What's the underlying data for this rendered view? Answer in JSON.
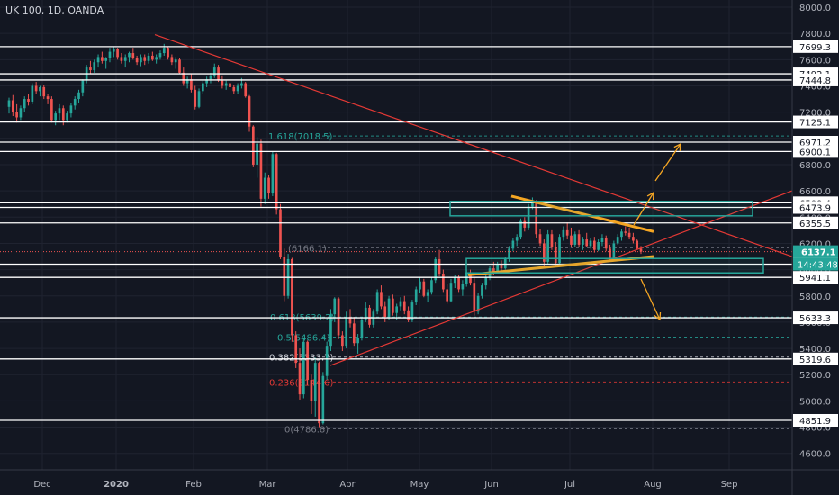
{
  "header": {
    "title": "UK 100, 1D, OANDA"
  },
  "colors": {
    "background": "#131722",
    "up": "#26a69a",
    "down": "#ef5350",
    "axis_text": "#b2b5be",
    "level_line": "#ffffff",
    "trendline": "#e53935",
    "channel": "#f5a623",
    "fib_teal": "#26a69a",
    "fib_red": "#e53935"
  },
  "chart_data": {
    "type": "candlestick",
    "y_ticks": [
      "8000.0",
      "7800.0",
      "7600.0",
      "7400.0",
      "7200.0",
      "7000.0",
      "6800.0",
      "6600.0",
      "6400.0",
      "6200.0",
      "6000.0",
      "5800.0",
      "5600.0",
      "5400.0",
      "5200.0",
      "5000.0",
      "4800.0",
      "4600.0"
    ],
    "x_ticks": [
      "Dec",
      "2020",
      "Feb",
      "Mar",
      "Apr",
      "May",
      "Jun",
      "Jul",
      "Aug",
      "Sep"
    ],
    "horizontal_levels": [
      "7699.3",
      "7492.1",
      "7444.8",
      "7125.1",
      "6971.2",
      "6900.1",
      "6509.4",
      "6473.9",
      "6355.5",
      "6041.8",
      "5941.1",
      "5633.3",
      "5319.6",
      "4851.9"
    ],
    "last_price": "6137.1",
    "countdown": "14:43:48",
    "fib_levels": [
      {
        "label": "1.618(7018.5)",
        "value": 7018.5,
        "color": "teal"
      },
      {
        "label": "(6166.1)",
        "value": 6166.1,
        "color": "gray"
      },
      {
        "label": "0.618(5639.2)",
        "value": 5639.2,
        "color": "teal"
      },
      {
        "label": "0.5(5486.4)",
        "value": 5486.4,
        "color": "teal"
      },
      {
        "label": "0.382(5333.7)",
        "value": 5333.7,
        "color": "white"
      },
      {
        "label": "0.236(5144.6)",
        "value": 5144.6,
        "color": "red"
      },
      {
        "label": "0(4786.8)",
        "value": 4786.8,
        "color": "gray"
      }
    ],
    "candles": [
      [
        7240,
        7310,
        7190,
        7290
      ],
      [
        7290,
        7330,
        7170,
        7200
      ],
      [
        7200,
        7260,
        7120,
        7160
      ],
      [
        7160,
        7250,
        7140,
        7230
      ],
      [
        7230,
        7320,
        7200,
        7300
      ],
      [
        7300,
        7340,
        7250,
        7280
      ],
      [
        7280,
        7420,
        7260,
        7400
      ],
      [
        7400,
        7430,
        7340,
        7360
      ],
      [
        7360,
        7400,
        7320,
        7390
      ],
      [
        7390,
        7410,
        7300,
        7320
      ],
      [
        7320,
        7340,
        7260,
        7300
      ],
      [
        7300,
        7320,
        7120,
        7140
      ],
      [
        7140,
        7210,
        7100,
        7190
      ],
      [
        7190,
        7260,
        7140,
        7230
      ],
      [
        7230,
        7250,
        7100,
        7140
      ],
      [
        7140,
        7210,
        7120,
        7190
      ],
      [
        7190,
        7270,
        7160,
        7250
      ],
      [
        7250,
        7320,
        7220,
        7300
      ],
      [
        7300,
        7370,
        7270,
        7350
      ],
      [
        7350,
        7450,
        7320,
        7440
      ],
      [
        7440,
        7560,
        7420,
        7540
      ],
      [
        7540,
        7590,
        7490,
        7520
      ],
      [
        7520,
        7600,
        7500,
        7580
      ],
      [
        7580,
        7640,
        7540,
        7620
      ],
      [
        7620,
        7660,
        7570,
        7590
      ],
      [
        7590,
        7620,
        7530,
        7610
      ],
      [
        7610,
        7690,
        7580,
        7660
      ],
      [
        7660,
        7700,
        7620,
        7680
      ],
      [
        7680,
        7690,
        7600,
        7620
      ],
      [
        7620,
        7650,
        7570,
        7590
      ],
      [
        7590,
        7640,
        7540,
        7620
      ],
      [
        7620,
        7660,
        7580,
        7650
      ],
      [
        7650,
        7690,
        7600,
        7610
      ],
      [
        7610,
        7630,
        7560,
        7580
      ],
      [
        7580,
        7640,
        7550,
        7620
      ],
      [
        7620,
        7640,
        7560,
        7590
      ],
      [
        7590,
        7650,
        7570,
        7630
      ],
      [
        7630,
        7660,
        7590,
        7600
      ],
      [
        7600,
        7640,
        7570,
        7620
      ],
      [
        7620,
        7670,
        7600,
        7650
      ],
      [
        7650,
        7720,
        7630,
        7690
      ],
      [
        7690,
        7700,
        7600,
        7620
      ],
      [
        7620,
        7640,
        7560,
        7580
      ],
      [
        7580,
        7620,
        7530,
        7600
      ],
      [
        7600,
        7610,
        7490,
        7500
      ],
      [
        7500,
        7540,
        7400,
        7420
      ],
      [
        7420,
        7470,
        7380,
        7450
      ],
      [
        7450,
        7490,
        7350,
        7370
      ],
      [
        7370,
        7400,
        7220,
        7240
      ],
      [
        7240,
        7380,
        7230,
        7360
      ],
      [
        7360,
        7440,
        7340,
        7420
      ],
      [
        7420,
        7470,
        7390,
        7450
      ],
      [
        7450,
        7500,
        7420,
        7480
      ],
      [
        7480,
        7570,
        7460,
        7540
      ],
      [
        7540,
        7560,
        7430,
        7440
      ],
      [
        7440,
        7480,
        7380,
        7400
      ],
      [
        7400,
        7440,
        7370,
        7420
      ],
      [
        7420,
        7460,
        7380,
        7390
      ],
      [
        7390,
        7410,
        7340,
        7360
      ],
      [
        7360,
        7420,
        7340,
        7400
      ],
      [
        7400,
        7460,
        7380,
        7420
      ],
      [
        7420,
        7430,
        7310,
        7320
      ],
      [
        7320,
        7330,
        7050,
        7090
      ],
      [
        7090,
        7100,
        6780,
        6800
      ],
      [
        6800,
        7010,
        6700,
        6960
      ],
      [
        6960,
        6990,
        6480,
        6540
      ],
      [
        6540,
        6740,
        6500,
        6700
      ],
      [
        6700,
        6720,
        6540,
        6580
      ],
      [
        6580,
        6900,
        6560,
        6880
      ],
      [
        6880,
        6890,
        6420,
        6460
      ],
      [
        6460,
        6500,
        6080,
        6100
      ],
      [
        6100,
        6160,
        5760,
        5800
      ],
      [
        5800,
        6120,
        5780,
        6080
      ],
      [
        6080,
        6090,
        5450,
        5500
      ],
      [
        5500,
        5530,
        5250,
        5290
      ],
      [
        5290,
        5400,
        5010,
        5050
      ],
      [
        5050,
        5480,
        5020,
        5450
      ],
      [
        5450,
        5460,
        5120,
        5160
      ],
      [
        5160,
        5200,
        4900,
        5000
      ],
      [
        5000,
        5330,
        4880,
        5290
      ],
      [
        5290,
        5300,
        4800,
        4830
      ],
      [
        4830,
        5220,
        4820,
        5190
      ],
      [
        5190,
        5450,
        5160,
        5420
      ],
      [
        5420,
        5700,
        5380,
        5660
      ],
      [
        5660,
        5790,
        5600,
        5780
      ],
      [
        5780,
        5790,
        5470,
        5500
      ],
      [
        5500,
        5530,
        5380,
        5420
      ],
      [
        5420,
        5680,
        5400,
        5640
      ],
      [
        5640,
        5700,
        5560,
        5590
      ],
      [
        5590,
        5640,
        5420,
        5440
      ],
      [
        5440,
        5510,
        5360,
        5480
      ],
      [
        5480,
        5640,
        5460,
        5620
      ],
      [
        5620,
        5750,
        5600,
        5710
      ],
      [
        5710,
        5730,
        5560,
        5580
      ],
      [
        5580,
        5700,
        5560,
        5680
      ],
      [
        5680,
        5850,
        5660,
        5830
      ],
      [
        5830,
        5880,
        5700,
        5720
      ],
      [
        5720,
        5760,
        5600,
        5640
      ],
      [
        5640,
        5800,
        5620,
        5780
      ],
      [
        5780,
        5810,
        5650,
        5670
      ],
      [
        5670,
        5740,
        5620,
        5720
      ],
      [
        5720,
        5790,
        5690,
        5760
      ],
      [
        5760,
        5800,
        5660,
        5690
      ],
      [
        5690,
        5720,
        5600,
        5620
      ],
      [
        5620,
        5770,
        5600,
        5750
      ],
      [
        5750,
        5870,
        5730,
        5850
      ],
      [
        5850,
        5940,
        5820,
        5910
      ],
      [
        5910,
        5930,
        5790,
        5800
      ],
      [
        5800,
        5850,
        5750,
        5830
      ],
      [
        5830,
        5940,
        5810,
        5920
      ],
      [
        5920,
        6100,
        5900,
        6080
      ],
      [
        6080,
        6150,
        5950,
        5970
      ],
      [
        5970,
        6000,
        5830,
        5850
      ],
      [
        5850,
        5890,
        5740,
        5760
      ],
      [
        5760,
        5930,
        5750,
        5900
      ],
      [
        5900,
        5960,
        5860,
        5940
      ],
      [
        5940,
        5960,
        5830,
        5850
      ],
      [
        5850,
        5920,
        5800,
        5890
      ],
      [
        5890,
        6000,
        5870,
        5980
      ],
      [
        5980,
        6000,
        5880,
        5900
      ],
      [
        5900,
        5940,
        5650,
        5680
      ],
      [
        5680,
        5820,
        5660,
        5800
      ],
      [
        5800,
        5900,
        5780,
        5880
      ],
      [
        5880,
        5960,
        5850,
        5940
      ],
      [
        5940,
        6030,
        5920,
        6010
      ],
      [
        6010,
        6060,
        5960,
        5980
      ],
      [
        5980,
        6060,
        5970,
        6040
      ],
      [
        6040,
        6070,
        5990,
        6010
      ],
      [
        6010,
        6100,
        6000,
        6080
      ],
      [
        6080,
        6180,
        6060,
        6160
      ],
      [
        6160,
        6240,
        6140,
        6220
      ],
      [
        6220,
        6270,
        6180,
        6250
      ],
      [
        6250,
        6390,
        6230,
        6370
      ],
      [
        6370,
        6400,
        6290,
        6320
      ],
      [
        6320,
        6500,
        6300,
        6480
      ],
      [
        6480,
        6550,
        6460,
        6520
      ],
      [
        6520,
        6530,
        6240,
        6270
      ],
      [
        6270,
        6310,
        6180,
        6200
      ],
      [
        6200,
        6230,
        6030,
        6060
      ],
      [
        6060,
        6300,
        6040,
        6270
      ],
      [
        6270,
        6300,
        6150,
        6170
      ],
      [
        6170,
        6210,
        6030,
        6050
      ],
      [
        6050,
        6270,
        6040,
        6250
      ],
      [
        6250,
        6330,
        6220,
        6300
      ],
      [
        6300,
        6360,
        6230,
        6260
      ],
      [
        6260,
        6320,
        6170,
        6190
      ],
      [
        6190,
        6290,
        6170,
        6270
      ],
      [
        6270,
        6300,
        6170,
        6190
      ],
      [
        6190,
        6250,
        6150,
        6230
      ],
      [
        6230,
        6280,
        6170,
        6180
      ],
      [
        6180,
        6240,
        6160,
        6220
      ],
      [
        6220,
        6250,
        6130,
        6150
      ],
      [
        6150,
        6230,
        6140,
        6210
      ],
      [
        6210,
        6270,
        6180,
        6240
      ],
      [
        6240,
        6260,
        6140,
        6160
      ],
      [
        6160,
        6190,
        6070,
        6090
      ],
      [
        6090,
        6220,
        6080,
        6200
      ],
      [
        6200,
        6270,
        6190,
        6250
      ],
      [
        6250,
        6310,
        6220,
        6290
      ],
      [
        6290,
        6330,
        6260,
        6280
      ],
      [
        6280,
        6320,
        6230,
        6250
      ],
      [
        6250,
        6280,
        6200,
        6220
      ],
      [
        6220,
        6230,
        6150,
        6160
      ],
      [
        6160,
        6180,
        6120,
        6137
      ]
    ]
  }
}
